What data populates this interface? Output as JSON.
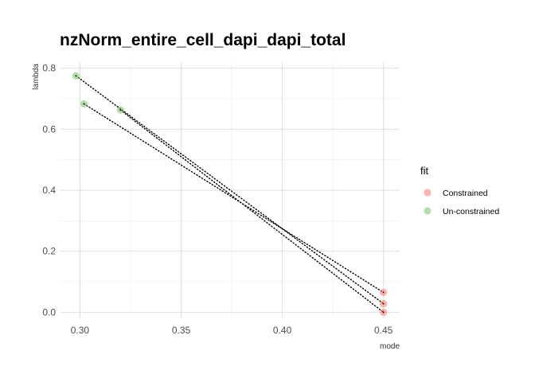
{
  "chart_data": {
    "type": "scatter",
    "title": "nzNorm_entire_cell_dapi_dapi_total",
    "xlabel": "mode",
    "ylabel": "lambda",
    "xlim": [
      0.29,
      0.458
    ],
    "ylim": [
      -0.02,
      0.82
    ],
    "x_ticks": [
      0.3,
      0.35,
      0.4,
      0.45
    ],
    "x_tick_labels": [
      "0.30",
      "0.35",
      "0.40",
      "0.45"
    ],
    "y_ticks": [
      0.0,
      0.2,
      0.4,
      0.6,
      0.8
    ],
    "y_tick_labels": [
      "0.0",
      "0.2",
      "0.4",
      "0.6",
      "0.8"
    ],
    "grid": true,
    "legend": {
      "title": "fit",
      "position": "right",
      "entries": [
        {
          "label": "Constrained",
          "color": "#f8766d"
        },
        {
          "label": "Un-constrained",
          "color": "#7cbf6b"
        }
      ]
    },
    "series": [
      {
        "name": "Constrained",
        "color": "#f8766d",
        "points": [
          {
            "x": 0.45,
            "y": 0.065
          },
          {
            "x": 0.45,
            "y": 0.028
          },
          {
            "x": 0.45,
            "y": 0.0
          }
        ]
      },
      {
        "name": "Un-constrained",
        "color": "#7cbf6b",
        "points": [
          {
            "x": 0.298,
            "y": 0.775
          },
          {
            "x": 0.302,
            "y": 0.683
          },
          {
            "x": 0.32,
            "y": 0.663
          }
        ]
      }
    ],
    "connections": [
      {
        "from": {
          "x": 0.298,
          "y": 0.775
        },
        "to": {
          "x": 0.45,
          "y": 0.028
        }
      },
      {
        "from": {
          "x": 0.302,
          "y": 0.683
        },
        "to": {
          "x": 0.45,
          "y": 0.065
        }
      },
      {
        "from": {
          "x": 0.32,
          "y": 0.663
        },
        "to": {
          "x": 0.45,
          "y": 0.0
        }
      }
    ]
  }
}
